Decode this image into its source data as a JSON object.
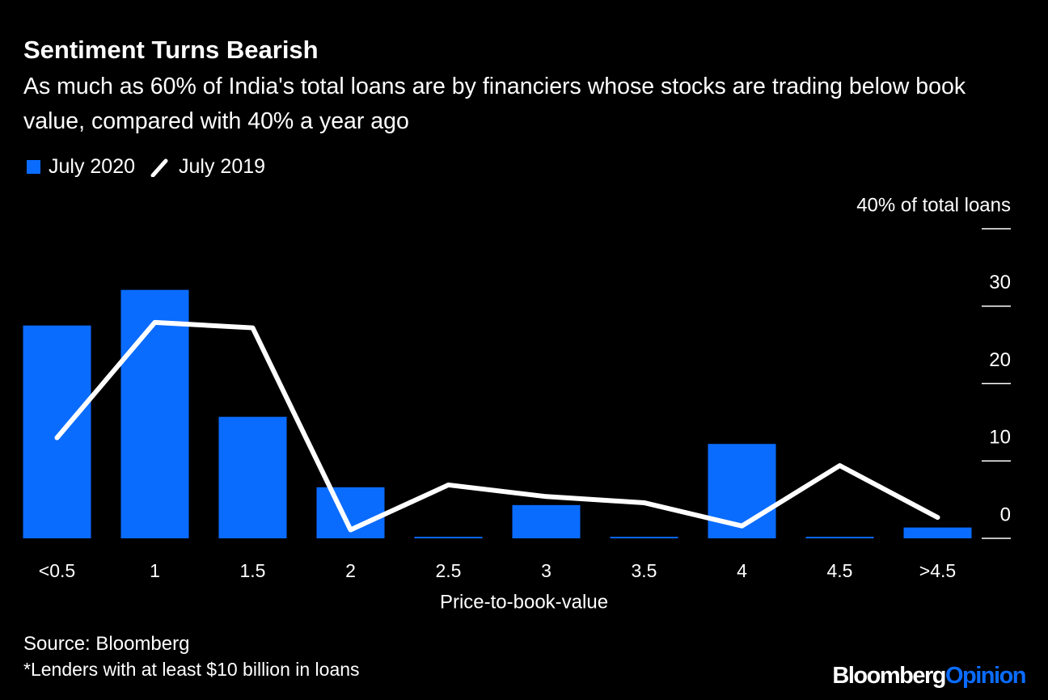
{
  "chart_data": {
    "type": "bar",
    "title": "Sentiment Turns Bearish",
    "subtitle": "As much as 60% of India's total loans are by financiers whose stocks are trading below book value, compared with 40% a year ago",
    "categories": [
      "<0.5",
      "1",
      "1.5",
      "2",
      "2.5",
      "3",
      "3.5",
      "4",
      "4.5",
      ">4.5"
    ],
    "series": [
      {
        "name": "July 2020",
        "type": "bar",
        "color": "#0a6cff",
        "values": [
          27.5,
          32.1,
          15.7,
          6.6,
          0.2,
          4.3,
          0.2,
          12.2,
          0.2,
          1.4
        ]
      },
      {
        "name": "July 2019",
        "type": "line",
        "color": "#ffffff",
        "values": [
          13.0,
          27.9,
          27.2,
          1.1,
          6.9,
          5.4,
          4.6,
          1.6,
          9.4,
          2.7
        ]
      }
    ],
    "ylim": [
      0,
      40
    ],
    "yticks": [
      0,
      10,
      20,
      30,
      {
        "value": 40,
        "label": "40% of total loans"
      }
    ],
    "xlabel": "Price-to-book-value",
    "source": "Source: Bloomberg",
    "note": "*Lenders with at least $10 billion in loans",
    "brand": {
      "name": "Bloomberg",
      "suffix": "Opinion"
    }
  }
}
